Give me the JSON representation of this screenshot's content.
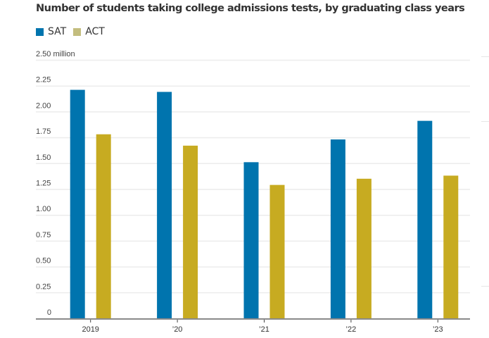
{
  "chart_data": {
    "type": "bar",
    "title": "Number of students taking college admissions tests, by graduating class years",
    "categories": [
      "2019",
      "’20",
      "’21",
      "’22",
      "’23"
    ],
    "series": [
      {
        "name": "SAT",
        "color": "#0074ae",
        "values": [
          2.21,
          2.19,
          1.51,
          1.73,
          1.91
        ]
      },
      {
        "name": "ACT",
        "color": "#c7ab21",
        "values": [
          1.78,
          1.67,
          1.29,
          1.35,
          1.38
        ]
      }
    ],
    "legend_colors": {
      "SAT": "#0074ae",
      "ACT": "#c3bd7e"
    },
    "xlabel": "",
    "ylabel": "",
    "ylim": [
      0,
      2.5
    ],
    "y_ticks": [
      {
        "value": 0,
        "label": "0"
      },
      {
        "value": 0.25,
        "label": "0.25"
      },
      {
        "value": 0.5,
        "label": "0.50"
      },
      {
        "value": 0.75,
        "label": "0.75"
      },
      {
        "value": 1.0,
        "label": "1.00"
      },
      {
        "value": 1.25,
        "label": "1.25"
      },
      {
        "value": 1.5,
        "label": "1.50"
      },
      {
        "value": 1.75,
        "label": "1.75"
      },
      {
        "value": 2.0,
        "label": "2.00"
      },
      {
        "value": 2.25,
        "label": "2.25"
      },
      {
        "value": 2.5,
        "label": "2.50 million"
      }
    ],
    "grid": true,
    "legend_position": "top-left"
  }
}
